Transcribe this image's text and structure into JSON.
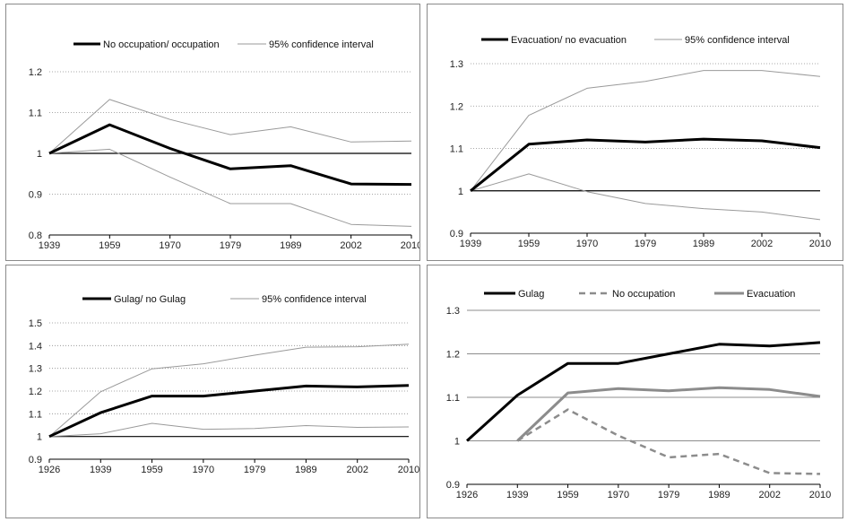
{
  "chart_data": [
    {
      "type": "line",
      "x": [
        "1939",
        "1959",
        "1970",
        "1979",
        "1989",
        "2002",
        "2010"
      ],
      "ylim": [
        0.8,
        1.2
      ],
      "yticks": [
        0.8,
        0.9,
        1,
        1.1,
        1.2
      ],
      "ytick_labels": [
        "0.8",
        "0.9",
        "1",
        "1.1",
        "1.2"
      ],
      "grid": "dotted",
      "legend_position": "top",
      "reference_line": 1,
      "series": [
        {
          "name": "No occupation/ occupation",
          "role": "main",
          "values": [
            1.0,
            1.07,
            1.012,
            0.962,
            0.97,
            0.925,
            0.924
          ]
        },
        {
          "name": "95% confidence interval",
          "role": "ci",
          "values": [
            1.0,
            1.132,
            1.083,
            1.046,
            1.065,
            1.028,
            1.03
          ]
        },
        {
          "name": "",
          "role": "ci",
          "values": [
            1.0,
            1.01,
            0.942,
            0.877,
            0.877,
            0.826,
            0.821
          ]
        }
      ]
    },
    {
      "type": "line",
      "x": [
        "1939",
        "1959",
        "1970",
        "1979",
        "1989",
        "2002",
        "2010"
      ],
      "ylim": [
        0.9,
        1.3
      ],
      "yticks": [
        0.9,
        1,
        1.1,
        1.2,
        1.3
      ],
      "ytick_labels": [
        "0.9",
        "1",
        "1.1",
        "1.2",
        "1.3"
      ],
      "grid": "dotted",
      "legend_position": "top",
      "reference_line": 1,
      "series": [
        {
          "name": "Evacuation/ no evacuation",
          "role": "main",
          "values": [
            1.0,
            1.11,
            1.12,
            1.115,
            1.122,
            1.118,
            1.102
          ]
        },
        {
          "name": "95% confidence interval",
          "role": "ci",
          "values": [
            1.0,
            1.178,
            1.242,
            1.258,
            1.284,
            1.284,
            1.27
          ]
        },
        {
          "name": "",
          "role": "ci",
          "values": [
            1.0,
            1.04,
            0.998,
            0.97,
            0.958,
            0.95,
            0.932
          ]
        }
      ]
    },
    {
      "type": "line",
      "x": [
        "1926",
        "1939",
        "1959",
        "1970",
        "1979",
        "1989",
        "2002",
        "2010"
      ],
      "ylim": [
        0.9,
        1.5
      ],
      "yticks": [
        0.9,
        1,
        1.1,
        1.2,
        1.3,
        1.4,
        1.5
      ],
      "ytick_labels": [
        "0.9",
        "1",
        "1.1",
        "1.2",
        "1.3",
        "1.4",
        "1.5"
      ],
      "grid": "dotted",
      "legend_position": "top",
      "reference_line": 1,
      "series": [
        {
          "name": "Gulag/ no Gulag",
          "role": "main",
          "values": [
            1.0,
            1.105,
            1.178,
            1.178,
            1.2,
            1.222,
            1.218,
            1.225
          ]
        },
        {
          "name": "95% confidence interval",
          "role": "ci",
          "values": [
            1.0,
            1.197,
            1.298,
            1.32,
            1.358,
            1.393,
            1.395,
            1.406
          ]
        },
        {
          "name": "",
          "role": "ci",
          "values": [
            1.0,
            1.012,
            1.058,
            1.032,
            1.035,
            1.048,
            1.04,
            1.042
          ]
        }
      ]
    },
    {
      "type": "line",
      "x": [
        "1926",
        "1939",
        "1959",
        "1970",
        "1979",
        "1989",
        "2002",
        "2010"
      ],
      "ylim": [
        0.9,
        1.3
      ],
      "yticks": [
        0.9,
        1,
        1.1,
        1.2,
        1.3
      ],
      "ytick_labels": [
        "0.9",
        "1",
        "1.1",
        "1.2",
        "1.3"
      ],
      "grid": "solid",
      "legend_position": "top",
      "series": [
        {
          "name": "Gulag",
          "role": "main",
          "values": [
            1.0,
            1.105,
            1.178,
            1.178,
            1.2,
            1.222,
            1.218,
            1.226
          ]
        },
        {
          "name": "No occupation",
          "role": "dashed",
          "values": [
            null,
            1.0,
            1.072,
            1.012,
            0.962,
            0.97,
            0.926,
            0.924
          ]
        },
        {
          "name": "Evacuation",
          "role": "mid",
          "values": [
            null,
            1.0,
            1.11,
            1.12,
            1.115,
            1.122,
            1.118,
            1.102
          ]
        }
      ]
    }
  ],
  "styles": {
    "main": "#000000",
    "ci": "#9a9a9a",
    "dashed": "#8c8c8c",
    "mid": "#8c8c8c",
    "grid": "#8c8c8c",
    "axis": "#000000"
  }
}
